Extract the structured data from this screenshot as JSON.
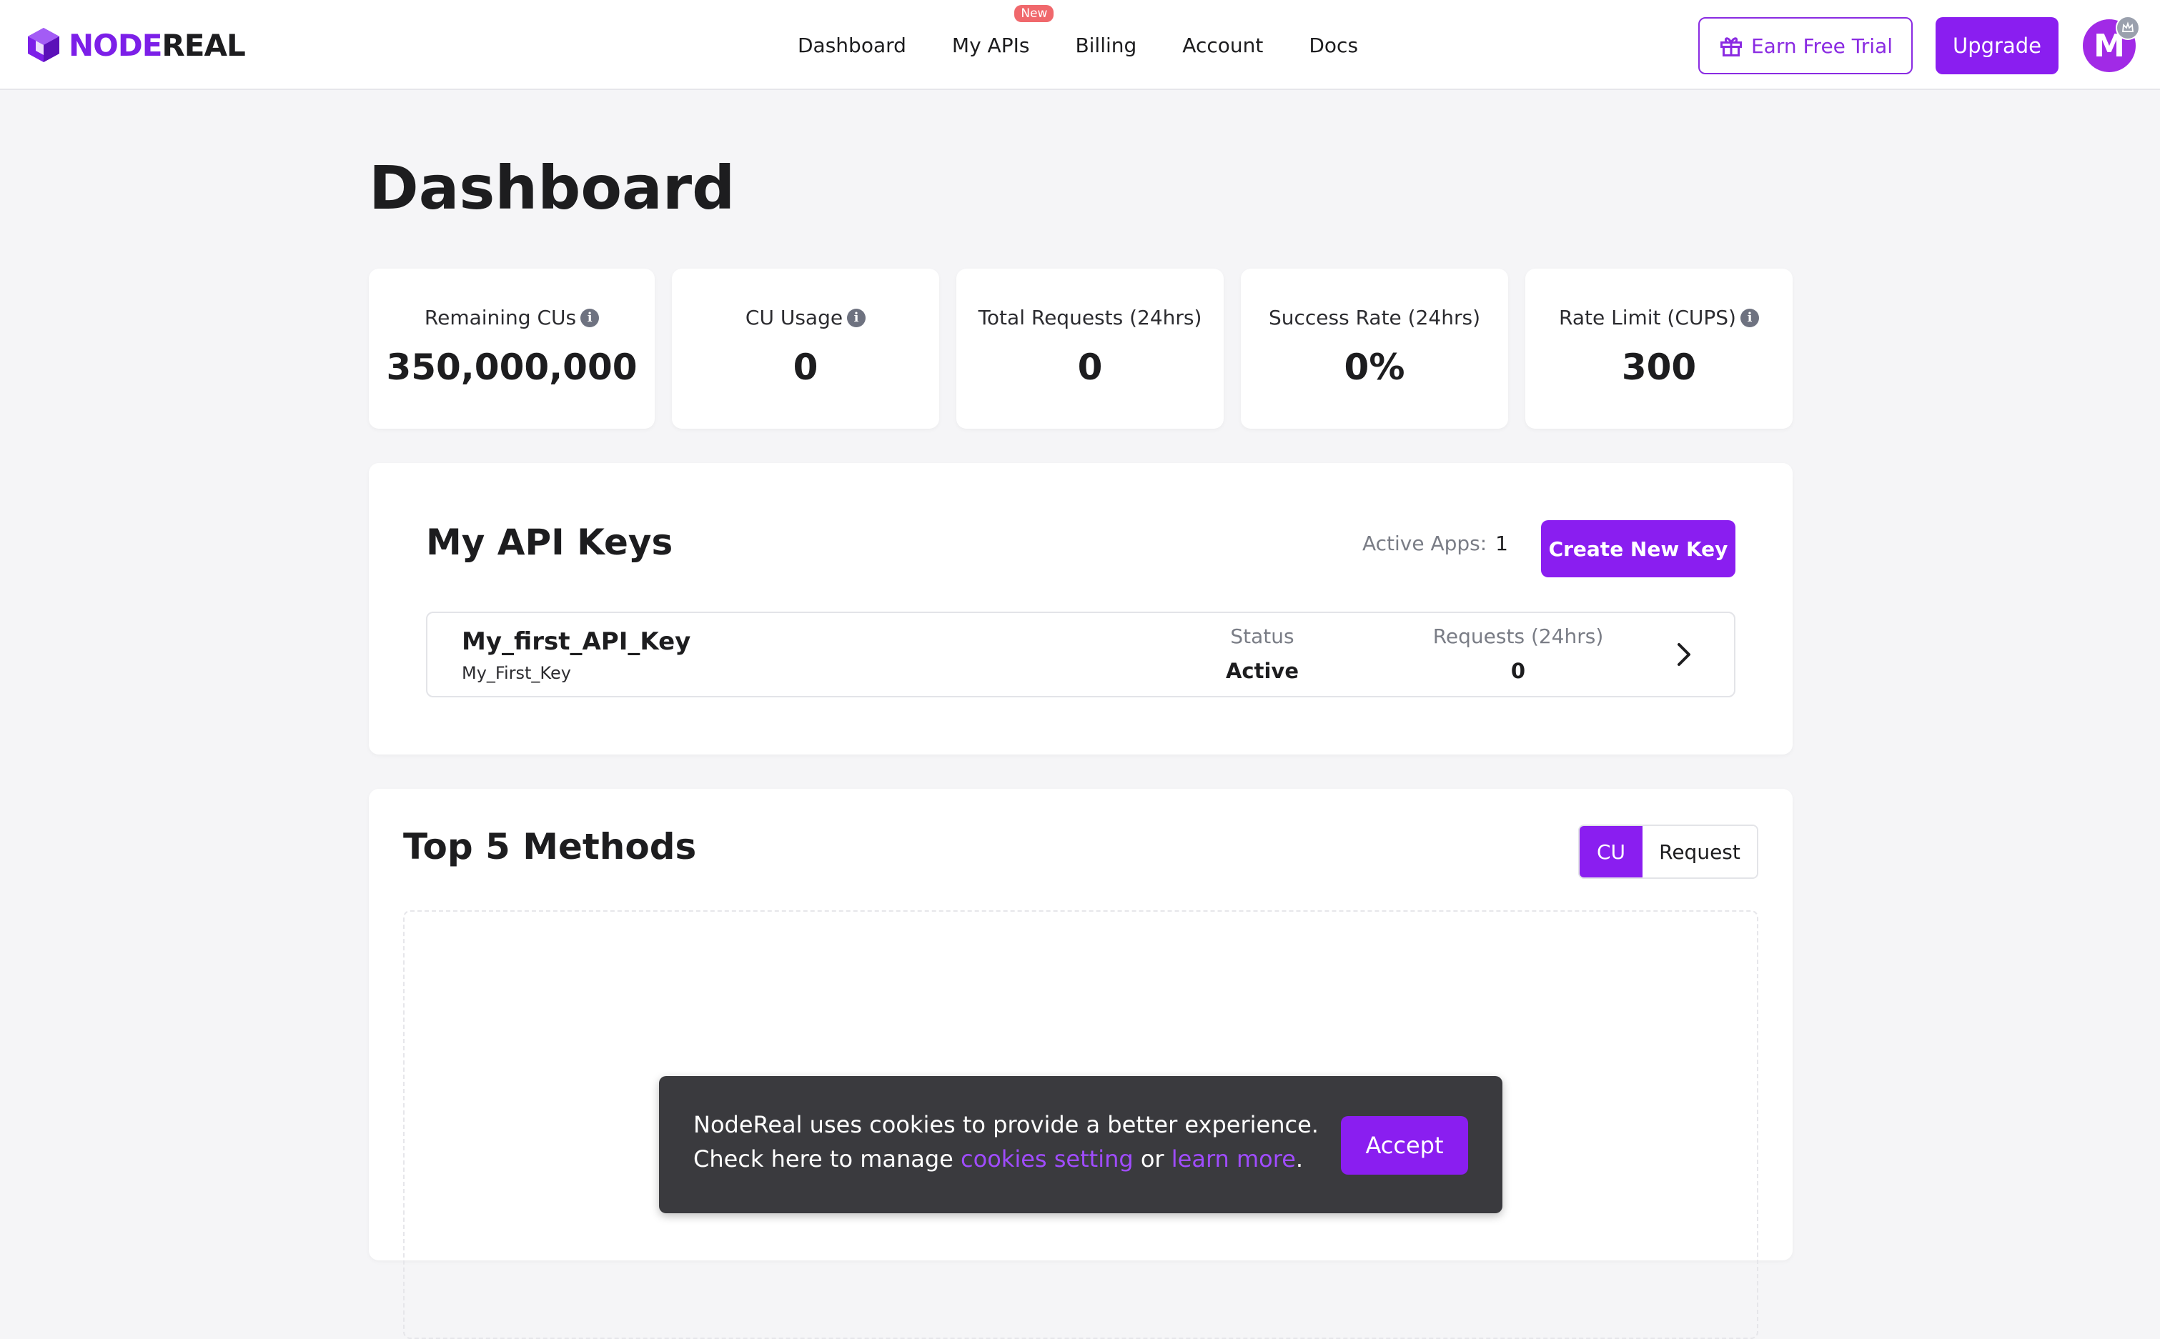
{
  "brand": {
    "name_part1": "NODE",
    "name_part2": "REAL"
  },
  "nav": {
    "items": [
      {
        "label": "Dashboard"
      },
      {
        "label": "My APIs",
        "badge": "New"
      },
      {
        "label": "Billing"
      },
      {
        "label": "Account"
      },
      {
        "label": "Docs"
      }
    ]
  },
  "header": {
    "earn_trial_label": "Earn Free Trial",
    "upgrade_label": "Upgrade",
    "avatar_letter": "M"
  },
  "page": {
    "title": "Dashboard"
  },
  "stats": [
    {
      "label": "Remaining CUs",
      "value": "350,000,000",
      "has_info": true
    },
    {
      "label": "CU Usage",
      "value": "0",
      "has_info": true
    },
    {
      "label": "Total Requests (24hrs)",
      "value": "0",
      "has_info": false
    },
    {
      "label": "Success Rate (24hrs)",
      "value": "0%",
      "has_info": false
    },
    {
      "label": "Rate Limit (CUPS)",
      "value": "300",
      "has_info": true
    }
  ],
  "api_keys": {
    "title": "My API Keys",
    "active_apps_label": "Active Apps:",
    "active_apps_count": "1",
    "create_button_label": "Create New Key",
    "keys": [
      {
        "name": "My_first_API_Key",
        "sub": "My_First_Key",
        "status_label": "Status",
        "status_value": "Active",
        "requests_label": "Requests (24hrs)",
        "requests_value": "0"
      }
    ]
  },
  "top_methods": {
    "title": "Top 5 Methods",
    "toggle": {
      "options": [
        "CU",
        "Request"
      ],
      "selected": "CU"
    }
  },
  "cookie_banner": {
    "line1": "NodeReal uses cookies to provide a better experience.",
    "line2_prefix": "Check here to manage",
    "link1": "cookies setting",
    "connector": "or",
    "link2": "learn more",
    "suffix": ".",
    "accept_label": "Accept"
  },
  "colors": {
    "brand_purple": "#8a1ef0",
    "badge_red": "#f0686c",
    "link_purple": "#a04cff"
  }
}
